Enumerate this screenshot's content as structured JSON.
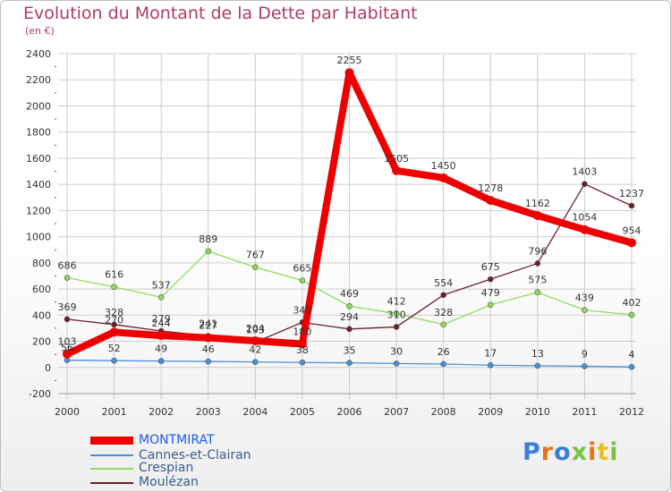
{
  "title": "Evolution du Montant de la Dette par Habitant",
  "unit_label": "(en €)",
  "logo": "Proxiti",
  "colors": {
    "title": "#b03a6a",
    "background": "#ffffff",
    "grid": "#cccccc",
    "axis_text": "#333333"
  },
  "chart_data": {
    "type": "line",
    "title": "Evolution du Montant de la Dette par Habitant",
    "subtitle": "(en €)",
    "x": [
      "2000",
      "2001",
      "2002",
      "2003",
      "2004",
      "2005",
      "2006",
      "2007",
      "2008",
      "2009",
      "2010",
      "2011",
      "2012"
    ],
    "ylim": [
      -200,
      2400
    ],
    "yticks": [
      -200,
      0,
      200,
      400,
      600,
      800,
      1000,
      1200,
      1400,
      1600,
      1800,
      2000,
      2200,
      2400
    ],
    "grid": true,
    "legend_position": "bottom-left",
    "series": [
      {
        "name": "MONTMIRAT",
        "color": "#ee0000",
        "values": [
          103,
          270,
          244,
          227,
          204,
          180,
          2255,
          1505,
          1450,
          1278,
          1162,
          1054,
          954
        ]
      },
      {
        "name": "Cannes-et-Clairan",
        "color": "#4a90d9",
        "values": [
          56,
          52,
          49,
          46,
          42,
          38,
          35,
          30,
          26,
          17,
          13,
          9,
          4
        ]
      },
      {
        "name": "Crespian",
        "color": "#8fdb5a",
        "values": [
          686,
          616,
          537,
          889,
          767,
          665,
          469,
          412,
          328,
          479,
          575,
          439,
          402
        ]
      },
      {
        "name": "Moulézan",
        "color": "#6b1f2a",
        "values": [
          369,
          328,
          279,
          241,
          193,
          345,
          294,
          310,
          554,
          675,
          796,
          1403,
          1237
        ]
      }
    ]
  }
}
